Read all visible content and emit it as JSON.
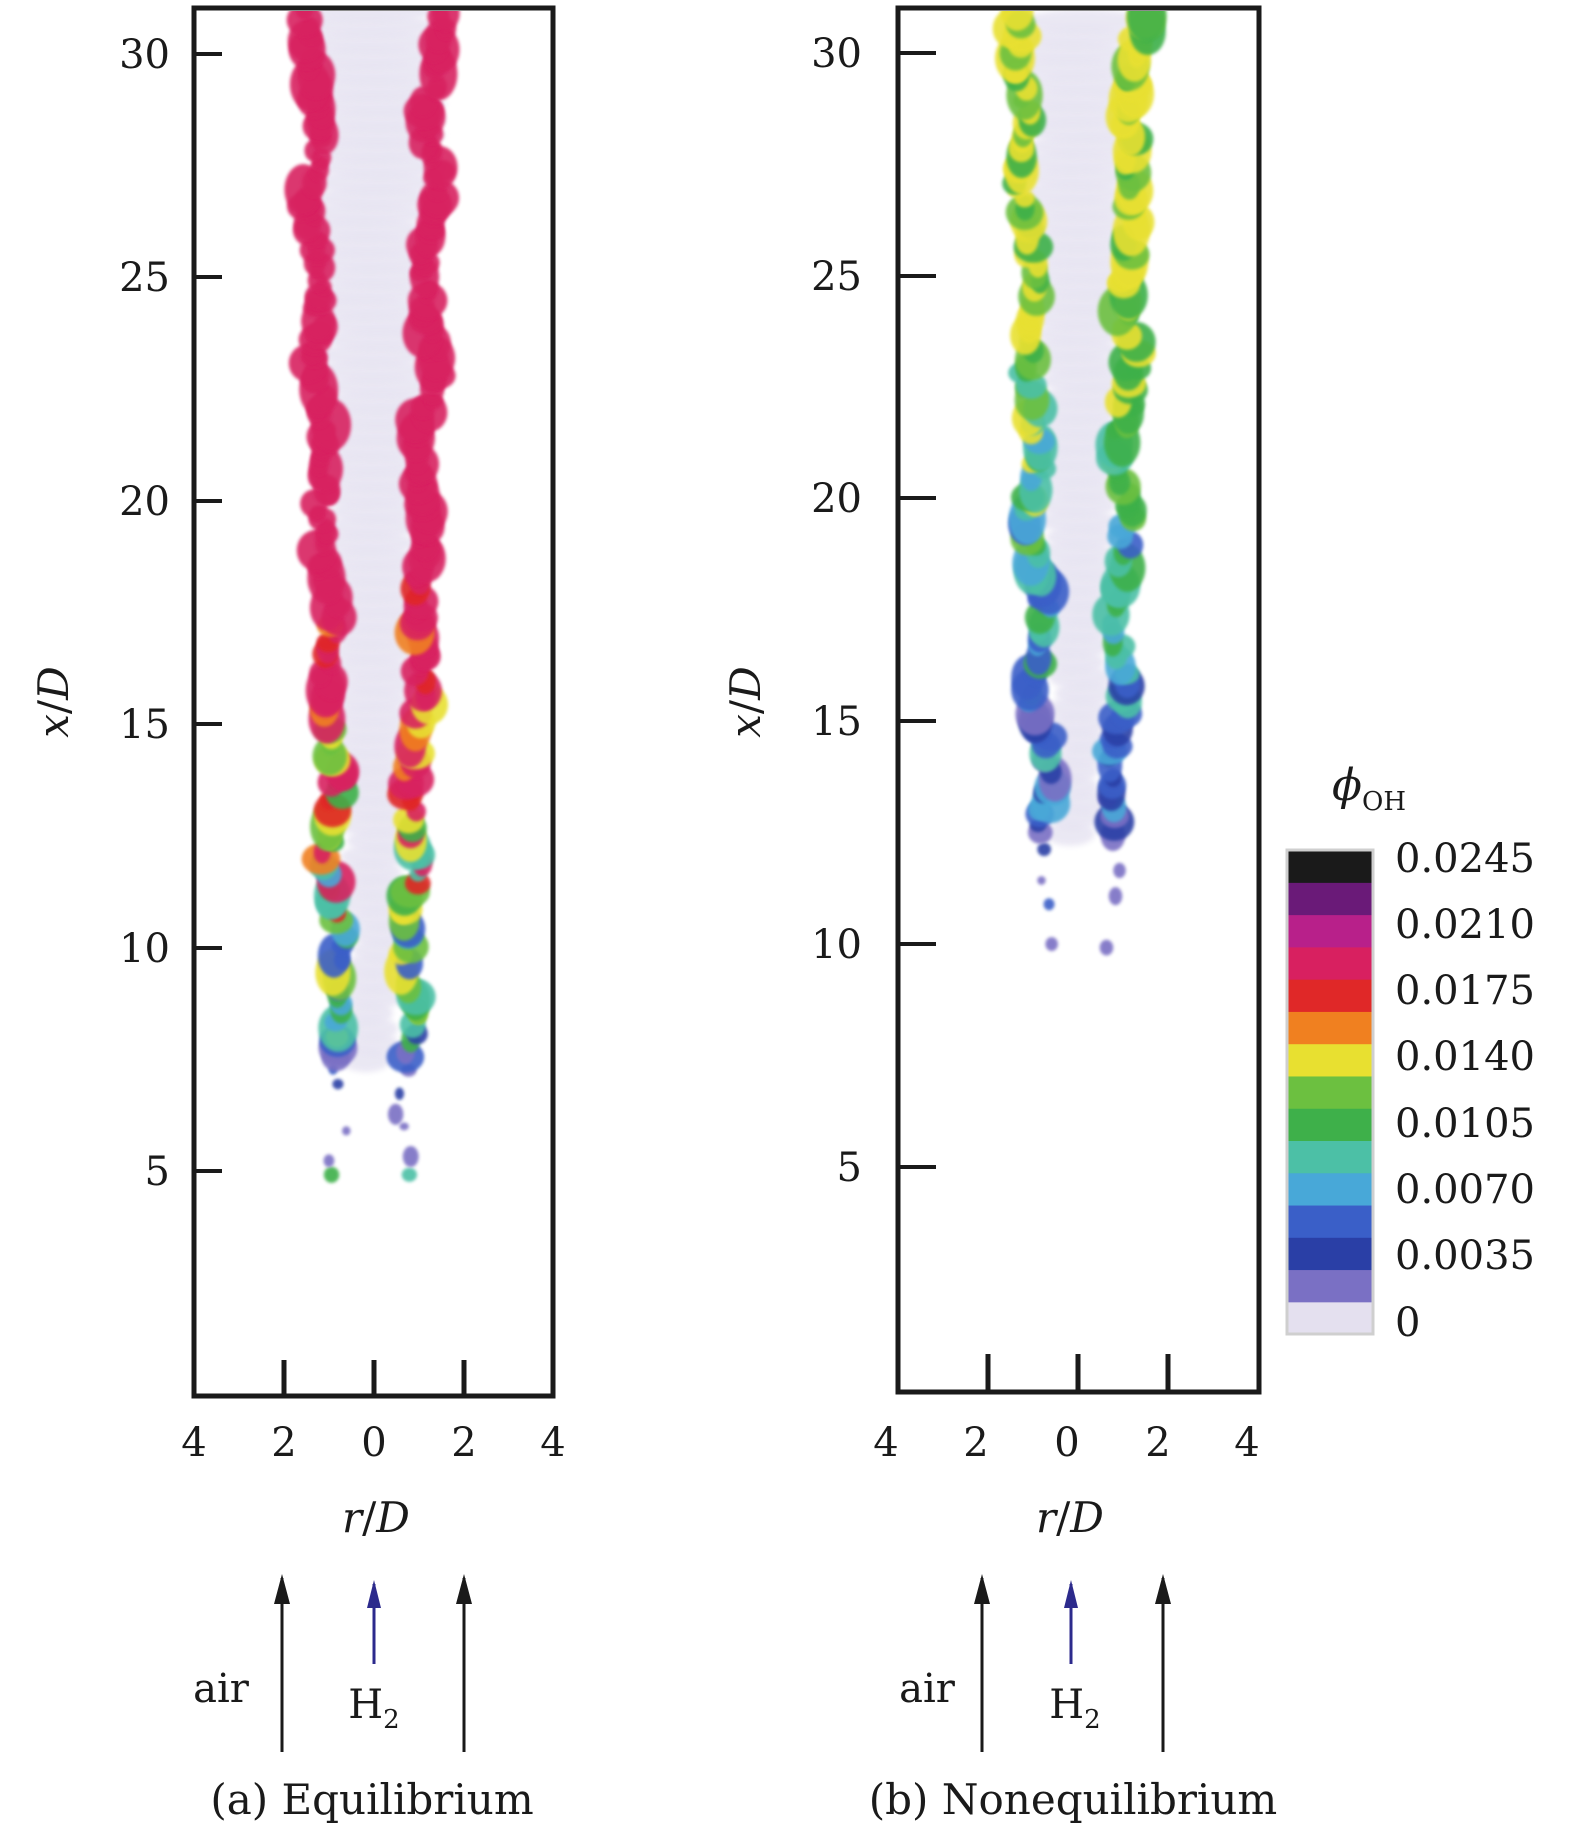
{
  "chart_data": [
    {
      "type": "heatmap",
      "panel": "a",
      "caption": "(a) Equilibrium",
      "xlabel_var": "r",
      "xlabel_unit": "D",
      "ylabel_var": "x",
      "ylabel_unit": "D",
      "xlim": [
        -4,
        4
      ],
      "ylim": [
        0,
        31
      ],
      "x_tick_labels": [
        "4",
        "2",
        "0",
        "2",
        "4"
      ],
      "x_tick_values": [
        -4,
        -2,
        0,
        2,
        4
      ],
      "y_tick_labels": [
        "5",
        "10",
        "15",
        "20",
        "25",
        "30"
      ],
      "y_tick_values": [
        5,
        10,
        15,
        20,
        25,
        30
      ],
      "flame_onset_x": 7.5,
      "flame_intensity": "high",
      "inflow_labels": {
        "air": "air",
        "fuel": "H",
        "fuel_subscript": "2"
      },
      "inflow_arrows_r": [
        -2,
        0,
        2
      ]
    },
    {
      "type": "heatmap",
      "panel": "b",
      "caption": "(b) Nonequilibrium",
      "xlabel_var": "r",
      "xlabel_unit": "D",
      "ylabel_var": "x",
      "ylabel_unit": "D",
      "xlim": [
        -4,
        4
      ],
      "ylim": [
        0,
        31
      ],
      "x_tick_labels": [
        "4",
        "2",
        "0",
        "2",
        "4"
      ],
      "x_tick_values": [
        -4,
        -2,
        0,
        2,
        4
      ],
      "y_tick_labels": [
        "5",
        "10",
        "15",
        "20",
        "25",
        "30"
      ],
      "y_tick_values": [
        5,
        10,
        15,
        20,
        25,
        30
      ],
      "flame_onset_x": 12.5,
      "flame_intensity": "low",
      "inflow_labels": {
        "air": "air",
        "fuel": "H",
        "fuel_subscript": "2"
      },
      "inflow_arrows_r": [
        -2,
        0,
        2
      ]
    }
  ],
  "colorbar": {
    "title_symbol": "ϕ",
    "title_subscript": "OH",
    "tick_labels": [
      "0.0245",
      "0.0210",
      "0.0175",
      "0.0140",
      "0.0105",
      "0.0070",
      "0.0035",
      "0"
    ],
    "tick_values": [
      0.0245,
      0.021,
      0.0175,
      0.014,
      0.0105,
      0.007,
      0.0035,
      0
    ],
    "range": [
      0,
      0.0245
    ],
    "colors": [
      "#e4e0ef",
      "#7a70c4",
      "#2a3fa6",
      "#3a5fc8",
      "#48a8d8",
      "#4cc0a6",
      "#3eb04a",
      "#6cc040",
      "#e8e030",
      "#f08020",
      "#e02828",
      "#d82060",
      "#b8208a",
      "#6a1a78",
      "#1a1a1a"
    ]
  },
  "colors": {
    "arrow": "#1a1a1a",
    "fuel_arrow": "#2c2a8c",
    "frame": "#1a1a1a"
  }
}
